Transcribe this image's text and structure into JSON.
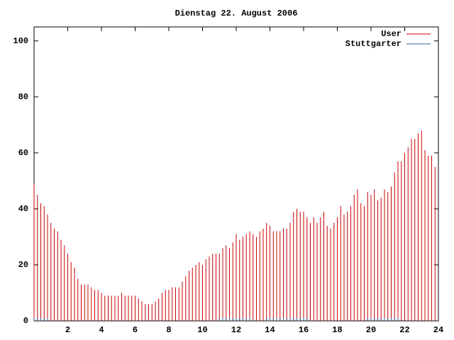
{
  "chart_data": {
    "type": "impulse",
    "title": "Dienstag 22. August 2006",
    "x": [
      0,
      0.2,
      0.4,
      0.6,
      0.8,
      1,
      1.2,
      1.4,
      1.6,
      1.8,
      2,
      2.2,
      2.4,
      2.6,
      2.8,
      3,
      3.2,
      3.4,
      3.6,
      3.8,
      4,
      4.2,
      4.4,
      4.6,
      4.8,
      5,
      5.2,
      5.4,
      5.6,
      5.8,
      6,
      6.2,
      6.4,
      6.6,
      6.8,
      7,
      7.2,
      7.4,
      7.6,
      7.8,
      8,
      8.2,
      8.4,
      8.6,
      8.8,
      9,
      9.2,
      9.4,
      9.6,
      9.8,
      10,
      10.2,
      10.4,
      10.6,
      10.8,
      11,
      11.2,
      11.4,
      11.6,
      11.8,
      12,
      12.2,
      12.4,
      12.6,
      12.8,
      13,
      13.2,
      13.4,
      13.6,
      13.8,
      14,
      14.2,
      14.4,
      14.6,
      14.8,
      15,
      15.2,
      15.4,
      15.6,
      15.8,
      16,
      16.2,
      16.4,
      16.6,
      16.8,
      17,
      17.2,
      17.4,
      17.6,
      17.8,
      18,
      18.2,
      18.4,
      18.6,
      18.8,
      19,
      19.2,
      19.4,
      19.6,
      19.8,
      20,
      20.2,
      20.4,
      20.6,
      20.8,
      21,
      21.2,
      21.4,
      21.6,
      21.8,
      22,
      22.2,
      22.4,
      22.6,
      22.8,
      23,
      23.2,
      23.4,
      23.6,
      23.8
    ],
    "series": [
      {
        "name": "User",
        "color": "#cc0000",
        "values": [
          49,
          45,
          42,
          41,
          38,
          35,
          33,
          32,
          29,
          27,
          24,
          21,
          19,
          15,
          13,
          13,
          13,
          12,
          11,
          11,
          10,
          9,
          9,
          9,
          9,
          9,
          10,
          9,
          9,
          9,
          9,
          8,
          7,
          6,
          6,
          6,
          7,
          8,
          10,
          11,
          11,
          12,
          12,
          12,
          14,
          16,
          18,
          19,
          20,
          21,
          20,
          22,
          23,
          24,
          24,
          24,
          26,
          27,
          26,
          28,
          31,
          29,
          30,
          31,
          32,
          31,
          30,
          32,
          33,
          35,
          34,
          32,
          32,
          32,
          33,
          33,
          35,
          39,
          40,
          39,
          39,
          37,
          35,
          37,
          35,
          37,
          39,
          34,
          33,
          35,
          37,
          41,
          38,
          39,
          41,
          45,
          47,
          42,
          41,
          46,
          45,
          47,
          43,
          44,
          47,
          46,
          48,
          53,
          57,
          57,
          60,
          62,
          65,
          65,
          67,
          68,
          61,
          59,
          59,
          55
        ]
      },
      {
        "name": "Stuttgarter",
        "color": "#2a6aa8",
        "values": [
          1,
          1,
          1,
          1,
          1,
          null,
          null,
          null,
          null,
          null,
          null,
          null,
          null,
          null,
          null,
          null,
          null,
          null,
          null,
          null,
          null,
          null,
          null,
          null,
          null,
          null,
          null,
          null,
          null,
          null,
          null,
          null,
          null,
          null,
          null,
          null,
          null,
          null,
          null,
          null,
          null,
          null,
          null,
          null,
          null,
          null,
          null,
          null,
          null,
          null,
          null,
          null,
          null,
          null,
          null,
          1,
          1,
          1,
          1,
          1,
          1,
          1,
          1,
          1,
          1,
          null,
          null,
          null,
          null,
          1,
          1,
          1,
          1,
          1,
          1,
          1,
          1,
          1,
          1,
          1,
          1,
          1,
          null,
          null,
          null,
          null,
          null,
          null,
          null,
          null,
          null,
          null,
          null,
          null,
          null,
          null,
          null,
          null,
          null,
          1,
          1,
          1,
          1,
          1,
          1,
          1,
          1,
          1,
          1,
          null,
          null,
          null,
          null,
          null,
          null,
          null,
          null,
          null,
          null,
          null
        ]
      }
    ],
    "xlim": [
      0,
      24
    ],
    "xticks": [
      2,
      4,
      6,
      8,
      10,
      12,
      14,
      16,
      18,
      20,
      22,
      24
    ],
    "ylim": [
      0,
      105
    ],
    "yticks": [
      0,
      20,
      40,
      60,
      80,
      100
    ],
    "legend": "top-right"
  }
}
